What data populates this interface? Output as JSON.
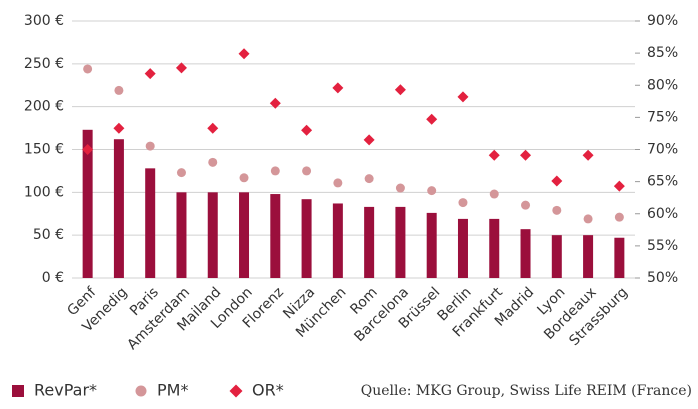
{
  "chart_data": {
    "type": "combo",
    "categories": [
      "Genf",
      "Venedig",
      "Paris",
      "Amsterdam",
      "Mailand",
      "London",
      "Florenz",
      "Nizza",
      "München",
      "Rom",
      "Barcelona",
      "Brüssel",
      "Berlin",
      "Frankfurt",
      "Madrid",
      "Lyon",
      "Bordeaux",
      "Strassburg"
    ],
    "series": [
      {
        "name": "RevPar*",
        "mark": "bar",
        "color": "#9b0f3c",
        "values": [
          173,
          162,
          128,
          100,
          100,
          100,
          98,
          92,
          87,
          83,
          83,
          76,
          69,
          69,
          57,
          50,
          50,
          47
        ]
      },
      {
        "name": "PM*",
        "mark": "dot",
        "color": "#d49699",
        "values": [
          244,
          219,
          154,
          123,
          135,
          117,
          125,
          125,
          111,
          116,
          105,
          102,
          88,
          98,
          85,
          79,
          69,
          71
        ]
      },
      {
        "name": "OR*",
        "mark": "diamond",
        "color": "#e3213f",
        "axis": "y2",
        "values": [
          70,
          73.3,
          81.8,
          82.7,
          73.3,
          84.9,
          77.2,
          73,
          79.6,
          71.5,
          79.3,
          74.7,
          78.2,
          69.1,
          69.1,
          65.1,
          69.1,
          64.3
        ]
      }
    ],
    "ylim": [
      0,
      300
    ],
    "yticks": [
      {
        "value": 0,
        "label": "0 €"
      },
      {
        "value": 50,
        "label": "50 €"
      },
      {
        "value": 100,
        "label": "100 €"
      },
      {
        "value": 150,
        "label": "150 €"
      },
      {
        "value": 200,
        "label": "200 €"
      },
      {
        "value": 250,
        "label": "250 €"
      },
      {
        "value": 300,
        "label": "300 €"
      }
    ],
    "y2lim": [
      50,
      90
    ],
    "y2ticks": [
      {
        "value": 50,
        "label": "50%"
      },
      {
        "value": 55,
        "label": "55%"
      },
      {
        "value": 60,
        "label": "60%"
      },
      {
        "value": 65,
        "label": "65%"
      },
      {
        "value": 70,
        "label": "70%"
      },
      {
        "value": 75,
        "label": "75%"
      },
      {
        "value": 80,
        "label": "80%"
      },
      {
        "value": 85,
        "label": "85%"
      },
      {
        "value": 90,
        "label": "90%"
      }
    ],
    "grid": true,
    "source": "Quelle: MKG Group, Swiss Life REIM (France)"
  }
}
